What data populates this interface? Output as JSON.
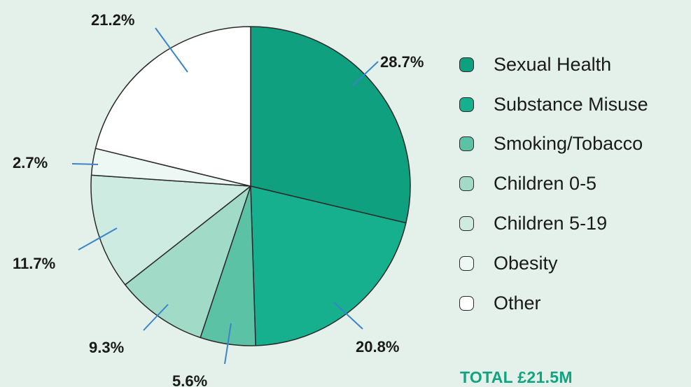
{
  "chart_data": {
    "type": "pie",
    "title": "",
    "start_angle_deg": 0,
    "direction": "clockwise",
    "slices": [
      {
        "name": "Sexual Health",
        "value": 28.7,
        "label": "28.7%",
        "color": "#0ea07f"
      },
      {
        "name": "Substance Misuse",
        "value": 20.8,
        "label": "20.8%",
        "color": "#16b08e"
      },
      {
        "name": "Smoking/Tobacco",
        "value": 5.6,
        "label": "5.6%",
        "color": "#5cc2a6"
      },
      {
        "name": "Children 0-5",
        "value": 9.3,
        "label": "9.3%",
        "color": "#a1dbc7"
      },
      {
        "name": "Children 5-19",
        "value": 11.7,
        "label": "11.7%",
        "color": "#cdebe1"
      },
      {
        "name": "Obesity",
        "value": 2.7,
        "label": "2.7%",
        "color": "#edf7f3"
      },
      {
        "name": "Other",
        "value": 21.2,
        "label": "21.2%",
        "color": "#ffffff"
      }
    ],
    "legend_position": "right",
    "leader_line_color": "#3a84c9",
    "slice_border_color": "#2a2a2a",
    "total": "TOTAL £21.5M"
  }
}
